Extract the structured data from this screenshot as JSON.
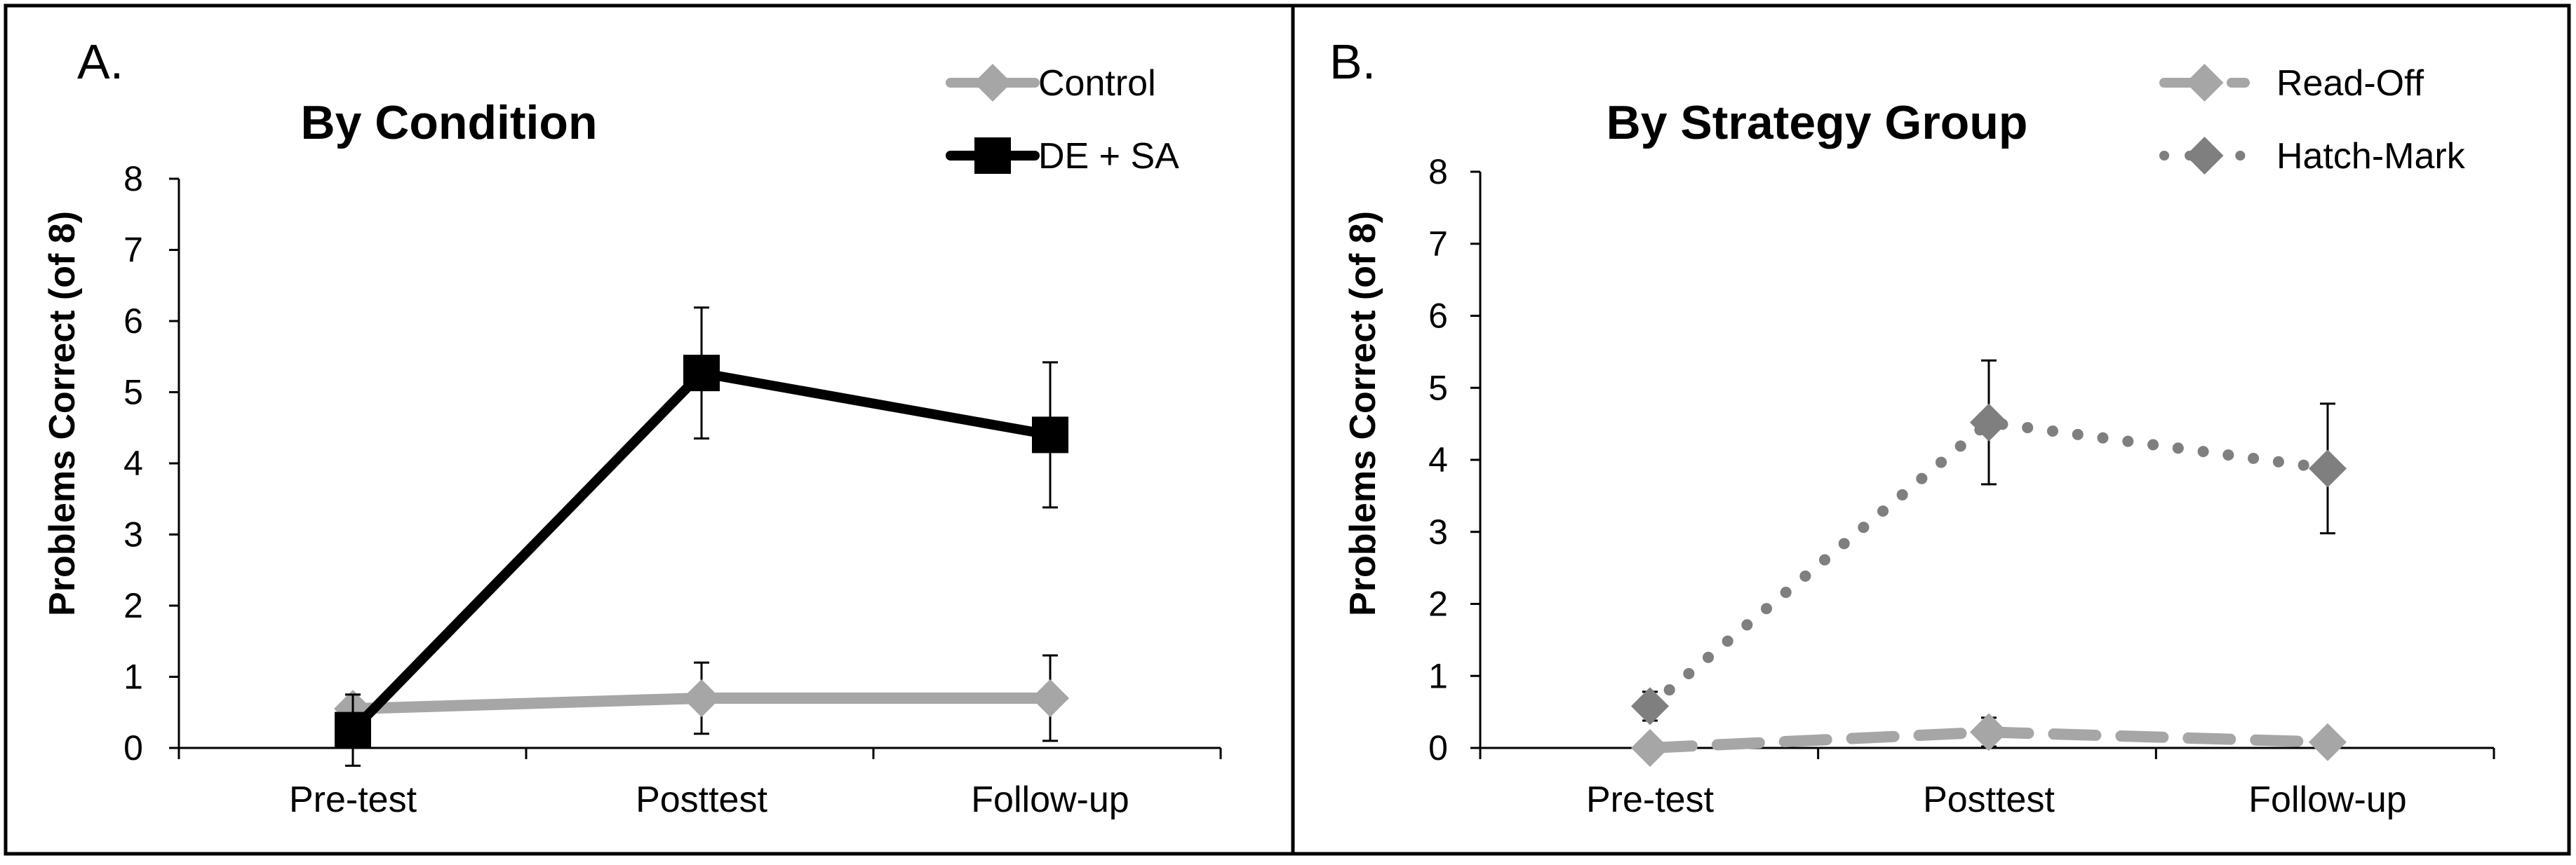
{
  "chart_data": [
    {
      "type": "line",
      "panel_letter": "A.",
      "title": "By Condition",
      "xlabel": "",
      "ylabel": "Problems Correct (of 8)",
      "ylim": [
        0,
        8
      ],
      "yticks": [
        0,
        1,
        2,
        3,
        4,
        5,
        6,
        7,
        8
      ],
      "categories": [
        "Pre-test",
        "Posttest",
        "Follow-up"
      ],
      "legend_position": "top-right",
      "series": [
        {
          "name": "Control",
          "values": [
            0.55,
            0.7,
            0.7
          ],
          "error": [
            0.2,
            0.5,
            0.6
          ],
          "color": "#a6a6a6",
          "line_style": "solid",
          "marker": "diamond"
        },
        {
          "name": "DE + SA",
          "values": [
            0.25,
            5.27,
            4.4
          ],
          "error": [
            0.5,
            0.92,
            1.02
          ],
          "color": "#000000",
          "line_style": "solid",
          "marker": "square"
        }
      ]
    },
    {
      "type": "line",
      "panel_letter": "B.",
      "title": "By Strategy Group",
      "xlabel": "",
      "ylabel": "Problems Correct (of 8)",
      "ylim": [
        0,
        8
      ],
      "yticks": [
        0,
        1,
        2,
        3,
        4,
        5,
        6,
        7,
        8
      ],
      "categories": [
        "Pre-test",
        "Posttest",
        "Follow-up"
      ],
      "legend_position": "top-right",
      "series": [
        {
          "name": "Read-Off",
          "values": [
            0.0,
            0.22,
            0.08
          ],
          "error": [
            0.05,
            0.2,
            0.05
          ],
          "color": "#a6a6a6",
          "line_style": "dashed",
          "marker": "diamond"
        },
        {
          "name": "Hatch-Mark",
          "values": [
            0.58,
            4.52,
            3.88
          ],
          "error": [
            0.2,
            0.86,
            0.9
          ],
          "color": "#7f7f7f",
          "line_style": "dotted",
          "marker": "diamond"
        }
      ]
    }
  ]
}
